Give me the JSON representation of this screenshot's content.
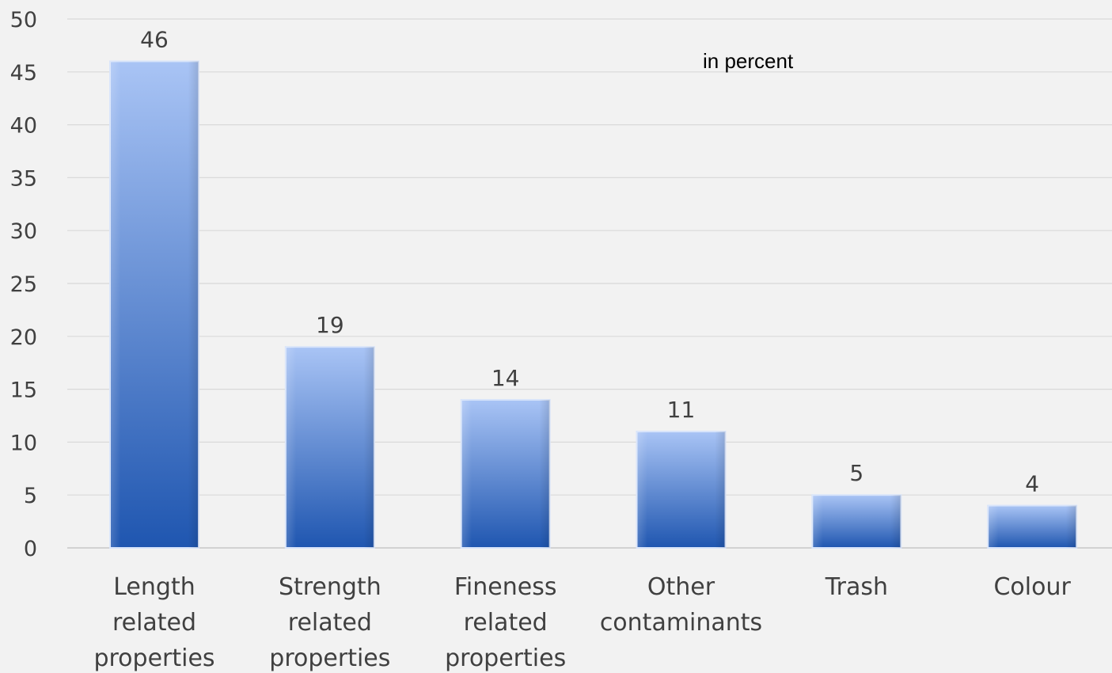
{
  "chart_data": {
    "type": "bar",
    "title": "",
    "xlabel": "",
    "ylabel": "",
    "annotation": "in percent",
    "categories": [
      [
        "Length",
        "related",
        "properties"
      ],
      [
        "Strength",
        "related",
        "properties"
      ],
      [
        "Fineness",
        "related",
        "properties"
      ],
      [
        "Other",
        "contaminants"
      ],
      [
        "Trash"
      ],
      [
        "Colour"
      ]
    ],
    "values": [
      46,
      19,
      14,
      11,
      5,
      4
    ],
    "ylim": [
      0,
      50
    ],
    "yticks": [
      0,
      5,
      10,
      15,
      20,
      25,
      30,
      35,
      40,
      45,
      50
    ],
    "grid": true,
    "legend": "none",
    "colors": {
      "bar_top": "#a9c4f5",
      "bar_bottom": "#1f56b0",
      "bar_edge": "#d8e4fa",
      "grid": "#d9d9d9",
      "text": "#404040",
      "background": "#f2f2f2"
    }
  }
}
